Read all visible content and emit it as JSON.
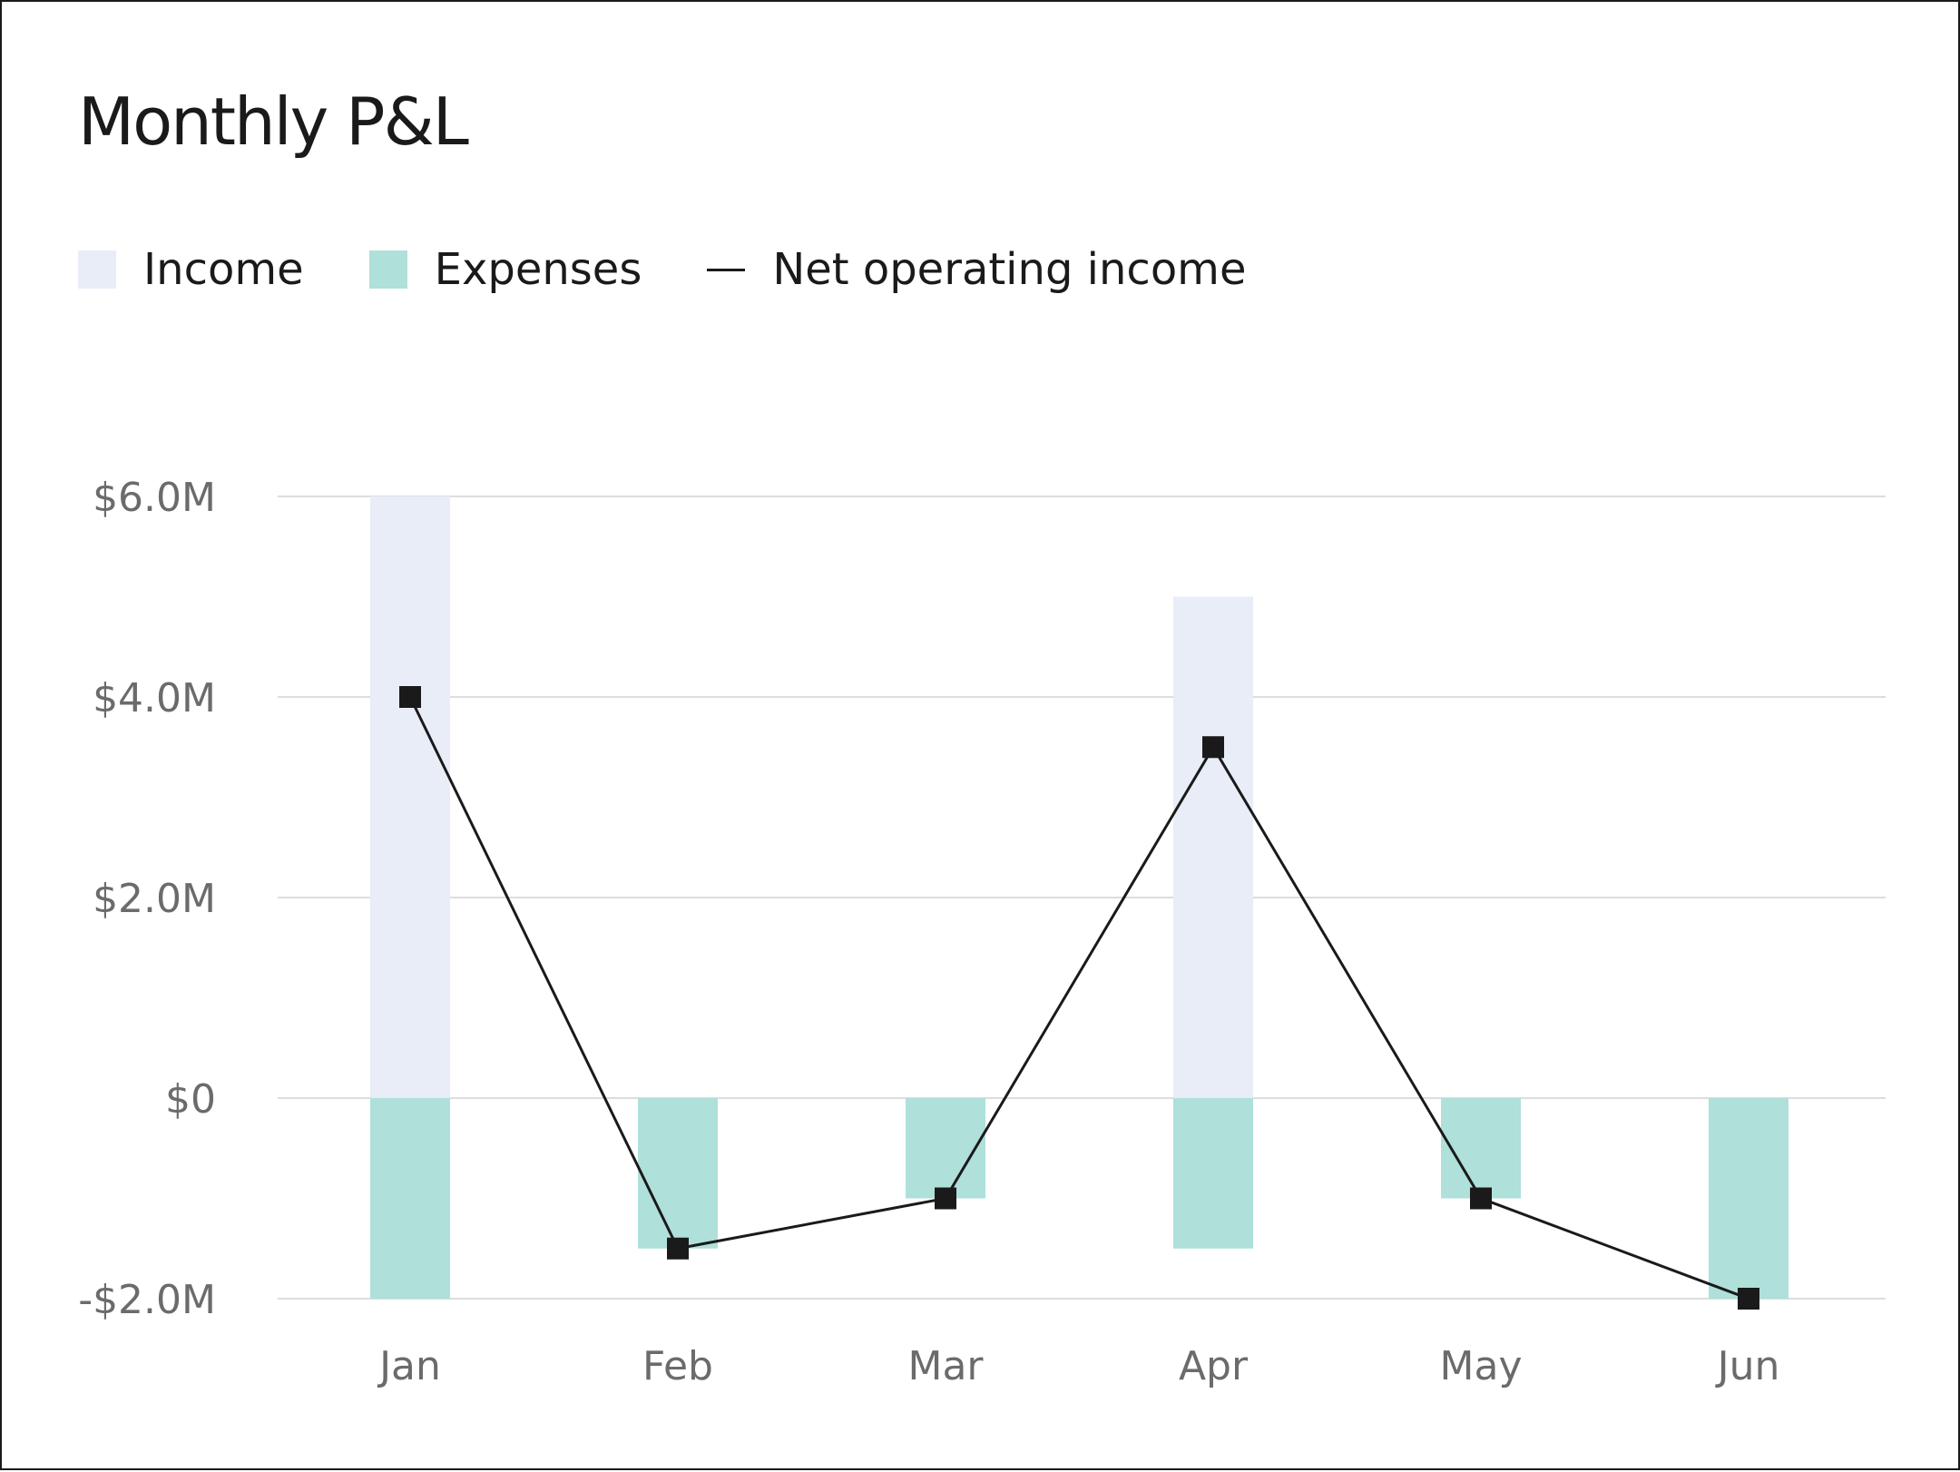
{
  "chart_data": {
    "type": "bar",
    "title": "Monthly P&L",
    "categories": [
      "Jan",
      "Feb",
      "Mar",
      "Apr",
      "May",
      "Jun"
    ],
    "series": [
      {
        "name": "Income",
        "kind": "bar",
        "color": "#e8edf8",
        "values": [
          6.0,
          0,
          0,
          5.0,
          0,
          0
        ]
      },
      {
        "name": "Expenses",
        "kind": "bar",
        "color": "#afe0da",
        "values": [
          -2.0,
          -1.5,
          -1.0,
          -1.5,
          -1.0,
          -2.0
        ]
      },
      {
        "name": "Net operating income",
        "kind": "line",
        "color": "#1a1a1a",
        "values": [
          4.0,
          -1.5,
          -1.0,
          3.5,
          -1.0,
          -2.0
        ]
      }
    ],
    "value_unit": "$M",
    "ylim": [
      -2.0,
      6.0
    ],
    "yticks": [
      {
        "value": 6.0,
        "label": "$6.0M"
      },
      {
        "value": 4.0,
        "label": "$4.0M"
      },
      {
        "value": 2.0,
        "label": "$2.0M"
      },
      {
        "value": 0,
        "label": "$0"
      },
      {
        "value": -2.0,
        "label": "-$2.0M"
      }
    ],
    "xlabel": "",
    "ylabel": "",
    "grid": true,
    "legend_position": "top-left",
    "colors": {
      "grid": "#dddddd",
      "tick_label": "#6b6b6b",
      "marker": "#1a1a1a"
    }
  }
}
